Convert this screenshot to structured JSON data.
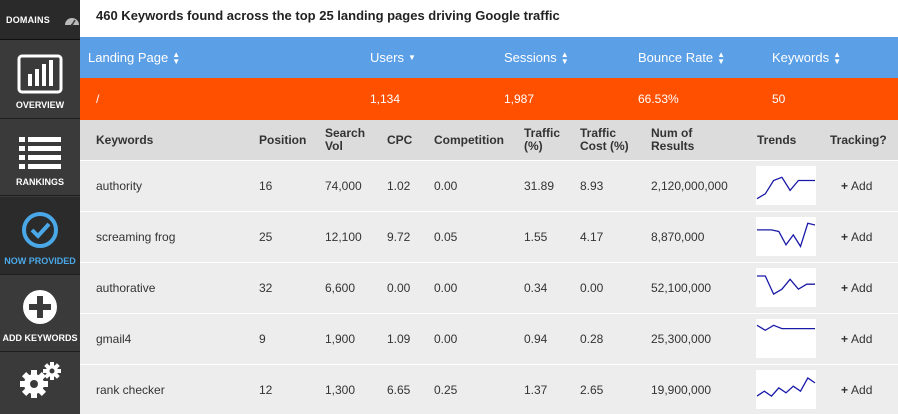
{
  "sidebar": {
    "domains_label": "DOMAINS",
    "items": [
      {
        "label": "OVERVIEW",
        "icon": "bar-chart-icon"
      },
      {
        "label": "RANKINGS",
        "icon": "list-icon"
      },
      {
        "label": "NOW PROVIDED",
        "icon": "checkmark-icon"
      },
      {
        "label": "ADD KEYWORDS",
        "icon": "plus-icon"
      },
      {
        "label": "",
        "icon": "gear-icon"
      }
    ]
  },
  "page": {
    "title": "460 Keywords found across the top 25 landing pages driving Google traffic"
  },
  "landing_header": {
    "landing_page": "Landing Page",
    "users": "Users",
    "sessions": "Sessions",
    "bounce_rate": "Bounce Rate",
    "keywords": "Keywords"
  },
  "landing_row": {
    "landing_page": "/",
    "users": "1,134",
    "sessions": "1,987",
    "bounce_rate": "66.53%",
    "keywords": "50"
  },
  "keyword_header": {
    "keywords": "Keywords",
    "position": "Position",
    "search_vol": "Search Vol",
    "cpc": "CPC",
    "competition": "Competition",
    "traffic": "Traffic (%)",
    "traffic_cost": "Traffic Cost (%)",
    "num_results": "Num of Results",
    "trends": "Trends",
    "tracking": "Tracking?"
  },
  "add_label": "Add",
  "keywords": [
    {
      "keyword": "authority",
      "position": "16",
      "search_vol": "74,000",
      "cpc": "1.02",
      "competition": "0.00",
      "traffic": "31.89",
      "traffic_cost": "8.93",
      "num_results": "2,120,000,000",
      "trend": [
        0.9,
        0.75,
        0.35,
        0.25,
        0.65,
        0.35,
        0.35,
        0.35
      ]
    },
    {
      "keyword": "screaming frog",
      "position": "25",
      "search_vol": "12,100",
      "cpc": "9.72",
      "competition": "0.05",
      "traffic": "1.55",
      "traffic_cost": "4.17",
      "num_results": "8,870,000",
      "trend": [
        0.3,
        0.3,
        0.3,
        0.35,
        0.75,
        0.45,
        0.8,
        0.1,
        0.15
      ]
    },
    {
      "keyword": "authorative",
      "position": "32",
      "search_vol": "6,600",
      "cpc": "0.00",
      "competition": "0.00",
      "traffic": "0.34",
      "traffic_cost": "0.00",
      "num_results": "52,100,000",
      "trend": [
        0.15,
        0.15,
        0.7,
        0.55,
        0.25,
        0.55,
        0.4,
        0.4
      ]
    },
    {
      "keyword": "gmail4",
      "position": "9",
      "search_vol": "1,900",
      "cpc": "1.09",
      "competition": "0.00",
      "traffic": "0.94",
      "traffic_cost": "0.28",
      "num_results": "25,300,000",
      "trend": [
        0.1,
        0.25,
        0.1,
        0.2,
        0.2,
        0.2,
        0.2,
        0.2
      ]
    },
    {
      "keyword": "rank checker",
      "position": "12",
      "search_vol": "1,300",
      "cpc": "6.65",
      "competition": "0.25",
      "traffic": "1.37",
      "traffic_cost": "2.65",
      "num_results": "19,900,000",
      "trend": [
        0.7,
        0.55,
        0.7,
        0.45,
        0.6,
        0.4,
        0.55,
        0.15,
        0.3
      ]
    }
  ],
  "colors": {
    "header_blue": "#5b9fe6",
    "landing_orange": "#ff5000",
    "trend_line": "#1a1aa8",
    "add_blue": "#3a6fd8",
    "active_blue": "#4aa8e8"
  }
}
